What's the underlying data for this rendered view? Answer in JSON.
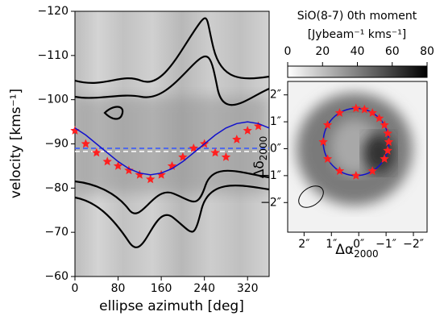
{
  "chart_data": [
    {
      "type": "scatter",
      "x_label": "ellipse azimuth [deg]",
      "y_label": "velocity [kms⁻¹]",
      "xlim": [
        0,
        360
      ],
      "ylim": [
        -60,
        -120
      ],
      "xticks": [
        0,
        80,
        160,
        240,
        320
      ],
      "yticks": [
        {
          "value": -120,
          "label": "−120"
        },
        {
          "value": -110,
          "label": "−110"
        },
        {
          "value": -100,
          "label": "−100"
        },
        {
          "value": -90,
          "label": "−90"
        },
        {
          "value": -80,
          "label": "−80"
        },
        {
          "value": -70,
          "label": "−70"
        },
        {
          "value": -60,
          "label": "−60"
        }
      ],
      "series": [
        {
          "type": "scatter",
          "color": "#ff2020",
          "x": [
            0,
            20,
            40,
            60,
            80,
            100,
            120,
            140,
            160,
            180,
            200,
            220,
            240,
            260,
            280,
            300,
            320,
            340
          ],
          "values": [
            -93,
            -90,
            -88,
            -86,
            -85,
            -84,
            -83,
            -82,
            -83,
            -85,
            -87,
            -89,
            -90,
            -88,
            -87,
            -91,
            -93,
            -94
          ]
        },
        {
          "type": "line",
          "color": "#1010cc",
          "x": [
            0,
            20,
            40,
            60,
            80,
            100,
            120,
            140,
            160,
            180,
            200,
            220,
            240,
            260,
            280,
            300,
            320,
            340,
            360
          ],
          "values": [
            -93.6,
            -92,
            -90,
            -88,
            -86,
            -84.4,
            -83.4,
            -83,
            -83.4,
            -84.4,
            -86,
            -88,
            -90,
            -92,
            -93.6,
            -94.6,
            -95,
            -94.6,
            -93.6
          ]
        }
      ],
      "hlines": [
        {
          "value": -89,
          "color": "#3355ff"
        },
        {
          "value": -88.3,
          "color": "#ffffff"
        }
      ]
    },
    {
      "type": "image",
      "title": "SiO(8-7) 0th moment",
      "colorbar_label": "[Jybeam⁻¹ kms⁻¹]",
      "clim": [
        0,
        80
      ],
      "cticks": [
        0,
        20,
        40,
        60,
        80
      ],
      "x_label": {
        "symbol": "Δα",
        "sub": "2000"
      },
      "y_label": {
        "symbol": "Δδ",
        "sub": "2000"
      },
      "xlim": [
        2.6,
        -2.5
      ],
      "ylim": [
        -3.1,
        2.5
      ],
      "xticks": [
        {
          "value": 2,
          "label": "2″"
        },
        {
          "value": 1,
          "label": "1″"
        },
        {
          "value": 0,
          "label": "0″"
        },
        {
          "value": -1,
          "label": "−1″"
        },
        {
          "value": -2,
          "label": "−2″"
        }
      ],
      "yticks": [
        {
          "value": 2,
          "label": "2″"
        },
        {
          "value": 1,
          "label": "1″"
        },
        {
          "value": 0,
          "label": "0″"
        },
        {
          "value": -1,
          "label": "−1″"
        },
        {
          "value": -2,
          "label": "−2″"
        }
      ],
      "series": [
        {
          "type": "scatter",
          "color": "#ff2020",
          "x": [
            1.3,
            1.14,
            0.7,
            0.1,
            -0.21,
            -0.5,
            -0.75,
            -0.94,
            -1.06,
            -1.1,
            -1.06,
            -0.94,
            -0.5,
            0.1,
            0.7,
            1.14
          ],
          "values": [
            0.25,
            0.88,
            1.33,
            1.5,
            1.46,
            1.33,
            1.13,
            0.88,
            0.57,
            0.25,
            -0.07,
            -0.38,
            -0.83,
            -1.0,
            -0.83,
            -0.38
          ]
        }
      ],
      "ellipse": {
        "x0": 0.1,
        "y0": 0.25,
        "rx": 1.2,
        "ry": 1.25,
        "color": "#1010cc"
      }
    }
  ]
}
